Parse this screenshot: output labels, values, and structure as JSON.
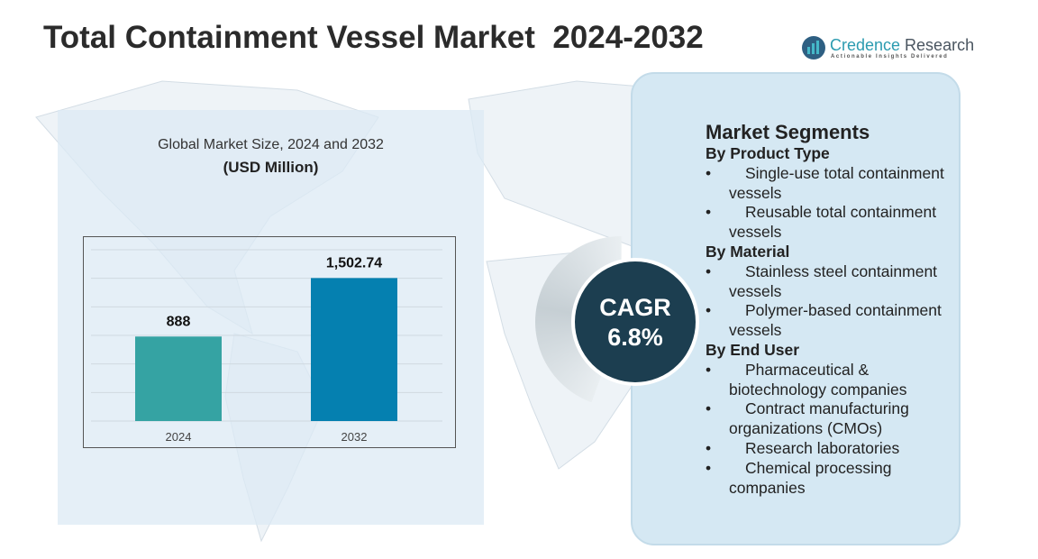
{
  "title": "Total Containment Vessel Market  2024-2032",
  "logo": {
    "name_part1": "Credence",
    "name_part2": " Research",
    "tagline": "Actionable Insights Delivered"
  },
  "chart_data": {
    "type": "bar",
    "title": "Global Market Size, 2024 and 2032",
    "unit": "(USD Million)",
    "categories": [
      "2024",
      "2032"
    ],
    "values": [
      888,
      1502.74
    ],
    "labels": [
      "888",
      "1,502.74"
    ],
    "colors": [
      "#35a3a3",
      "#0580b0"
    ],
    "grid": true
  },
  "cagr": {
    "label": "CAGR",
    "value": "6.8%"
  },
  "segments": {
    "heading": "Market Segments",
    "groups": [
      {
        "name": "By Product Type",
        "items": [
          "Single-use total containment vessels",
          "Reusable total containment vessels"
        ]
      },
      {
        "name": "By Material",
        "items": [
          "Stainless steel containment vessels",
          "Polymer-based containment vessels"
        ]
      },
      {
        "name": "By End User",
        "items": [
          "Pharmaceutical & biotechnology companies",
          "Contract manufacturing organizations (CMOs)",
          "Research laboratories",
          "Chemical processing companies"
        ]
      }
    ]
  }
}
